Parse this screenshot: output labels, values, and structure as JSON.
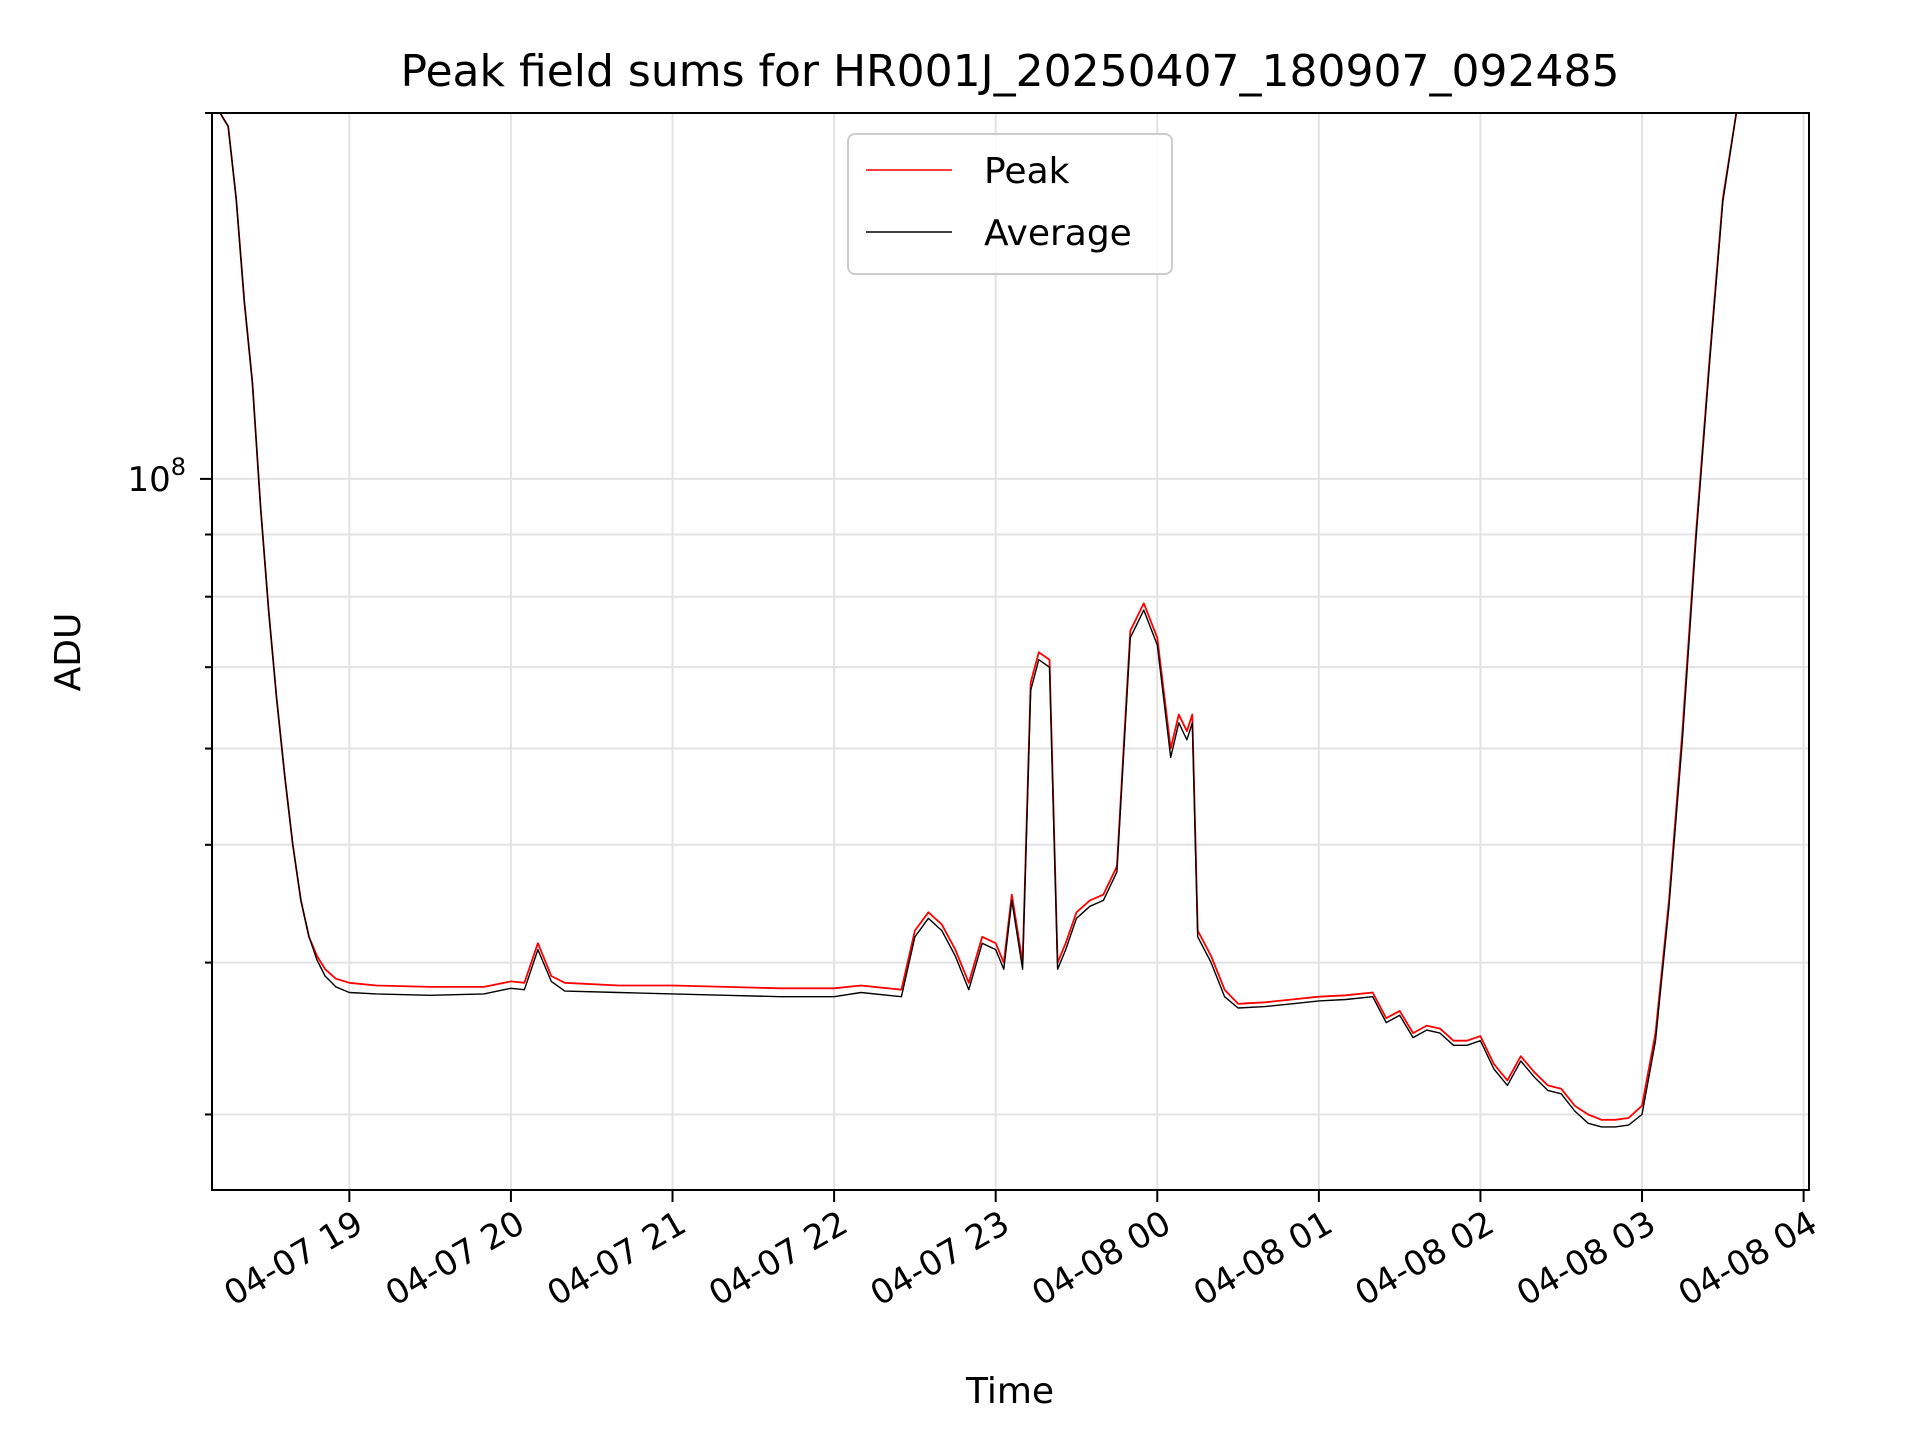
{
  "chart_data": {
    "type": "line",
    "title": "Peak field sums for HR001J_20250407_180907_092485",
    "xlabel": "Time",
    "ylabel": "ADU",
    "yscale": "log",
    "ylim": [
      26000000,
      200000000
    ],
    "xlim": [
      "2025-04-07 18:09",
      "2025-04-08 04:02"
    ],
    "grid": true,
    "legend_position": "top-center",
    "x_ticks": [
      "04-07 19",
      "04-07 20",
      "04-07 21",
      "04-07 22",
      "04-07 23",
      "04-08 00",
      "04-08 01",
      "04-08 02",
      "04-08 03",
      "04-08 04"
    ],
    "y_tick_major_label": "10^8",
    "y_tick_major_value": 100000000,
    "y_tick_minor_values": [
      30000000,
      40000000,
      50000000,
      60000000,
      70000000,
      80000000,
      90000000,
      200000000
    ],
    "x": [
      "2025-04-07 18:09",
      "2025-04-07 18:12",
      "2025-04-07 18:15",
      "2025-04-07 18:18",
      "2025-04-07 18:21",
      "2025-04-07 18:24",
      "2025-04-07 18:27",
      "2025-04-07 18:30",
      "2025-04-07 18:33",
      "2025-04-07 18:36",
      "2025-04-07 18:39",
      "2025-04-07 18:42",
      "2025-04-07 18:45",
      "2025-04-07 18:48",
      "2025-04-07 18:51",
      "2025-04-07 18:55",
      "2025-04-07 19:00",
      "2025-04-07 19:10",
      "2025-04-07 19:30",
      "2025-04-07 19:50",
      "2025-04-07 19:55",
      "2025-04-07 20:00",
      "2025-04-07 20:05",
      "2025-04-07 20:10",
      "2025-04-07 20:15",
      "2025-04-07 20:20",
      "2025-04-07 20:40",
      "2025-04-07 21:00",
      "2025-04-07 21:20",
      "2025-04-07 21:40",
      "2025-04-07 22:00",
      "2025-04-07 22:10",
      "2025-04-07 22:20",
      "2025-04-07 22:25",
      "2025-04-07 22:30",
      "2025-04-07 22:35",
      "2025-04-07 22:40",
      "2025-04-07 22:45",
      "2025-04-07 22:50",
      "2025-04-07 22:55",
      "2025-04-07 23:00",
      "2025-04-07 23:03",
      "2025-04-07 23:06",
      "2025-04-07 23:10",
      "2025-04-07 23:13",
      "2025-04-07 23:16",
      "2025-04-07 23:20",
      "2025-04-07 23:23",
      "2025-04-07 23:26",
      "2025-04-07 23:30",
      "2025-04-07 23:35",
      "2025-04-07 23:40",
      "2025-04-07 23:45",
      "2025-04-07 23:50",
      "2025-04-07 23:55",
      "2025-04-08 00:00",
      "2025-04-08 00:05",
      "2025-04-08 00:08",
      "2025-04-08 00:11",
      "2025-04-08 00:13",
      "2025-04-08 00:15",
      "2025-04-08 00:20",
      "2025-04-08 00:25",
      "2025-04-08 00:30",
      "2025-04-08 00:40",
      "2025-04-08 00:50",
      "2025-04-08 01:00",
      "2025-04-08 01:10",
      "2025-04-08 01:20",
      "2025-04-08 01:25",
      "2025-04-08 01:30",
      "2025-04-08 01:35",
      "2025-04-08 01:40",
      "2025-04-08 01:45",
      "2025-04-08 01:50",
      "2025-04-08 01:55",
      "2025-04-08 02:00",
      "2025-04-08 02:05",
      "2025-04-08 02:10",
      "2025-04-08 02:15",
      "2025-04-08 02:20",
      "2025-04-08 02:25",
      "2025-04-08 02:30",
      "2025-04-08 02:35",
      "2025-04-08 02:40",
      "2025-04-08 02:45",
      "2025-04-08 02:50",
      "2025-04-08 02:55",
      "2025-04-08 03:00",
      "2025-04-08 03:05",
      "2025-04-08 03:10",
      "2025-04-08 03:15",
      "2025-04-08 03:20",
      "2025-04-08 03:25",
      "2025-04-08 03:30",
      "2025-04-08 03:35",
      "2025-04-08 03:40",
      "2025-04-08 03:45",
      "2025-04-08 03:50",
      "2025-04-08 03:55",
      "2025-04-08 04:00"
    ],
    "series": [
      {
        "name": "Peak",
        "color": "#ff0000",
        "values": [
          200000000,
          200000000,
          195000000,
          170000000,
          140000000,
          120000000,
          95000000,
          78000000,
          66000000,
          57000000,
          50000000,
          45000000,
          42000000,
          40500000,
          39500000,
          38800000,
          38500000,
          38300000,
          38200000,
          38200000,
          38400000,
          38600000,
          38500000,
          41500000,
          39000000,
          38500000,
          38300000,
          38300000,
          38200000,
          38100000,
          38100000,
          38300000,
          38100000,
          38000000,
          42500000,
          44000000,
          43000000,
          41000000,
          38500000,
          42000000,
          41500000,
          40000000,
          45500000,
          40000000,
          68000000,
          72000000,
          71000000,
          40000000,
          41500000,
          44000000,
          45000000,
          45500000,
          48000000,
          75000000,
          79000000,
          74000000,
          60000000,
          64000000,
          62000000,
          64000000,
          42500000,
          40500000,
          38000000,
          37000000,
          37100000,
          37300000,
          37500000,
          37600000,
          37800000,
          36000000,
          36500000,
          35000000,
          35500000,
          35300000,
          34500000,
          34500000,
          34800000,
          33000000,
          32000000,
          33500000,
          32500000,
          31700000,
          31500000,
          30500000,
          30000000,
          29700000,
          29700000,
          29800000,
          30500000,
          35000000,
          45000000,
          62000000,
          90000000,
          125000000,
          170000000,
          200000000,
          200000000,
          200000000,
          200000000,
          200000000,
          200000000
        ]
      },
      {
        "name": "Average",
        "color": "#000000",
        "values": [
          200000000,
          200000000,
          195000000,
          170000000,
          140000000,
          120000000,
          95000000,
          78000000,
          66000000,
          57000000,
          50000000,
          45000000,
          42000000,
          40200000,
          39000000,
          38200000,
          37800000,
          37700000,
          37600000,
          37700000,
          37900000,
          38100000,
          38000000,
          41000000,
          38600000,
          37900000,
          37800000,
          37700000,
          37600000,
          37500000,
          37500000,
          37800000,
          37600000,
          37500000,
          42000000,
          43500000,
          42500000,
          40500000,
          38000000,
          41500000,
          41000000,
          39500000,
          45000000,
          39500000,
          67000000,
          71000000,
          70000000,
          39500000,
          41000000,
          43500000,
          44500000,
          45000000,
          47500000,
          74000000,
          78000000,
          73000000,
          59000000,
          63000000,
          61000000,
          63000000,
          42000000,
          40000000,
          37500000,
          36700000,
          36800000,
          37000000,
          37200000,
          37300000,
          37500000,
          35700000,
          36200000,
          34700000,
          35200000,
          35000000,
          34200000,
          34200000,
          34500000,
          32700000,
          31700000,
          33200000,
          32200000,
          31400000,
          31200000,
          30200000,
          29500000,
          29300000,
          29300000,
          29400000,
          30000000,
          34500000,
          44500000,
          61000000,
          89000000,
          124000000,
          169000000,
          200000000,
          200000000,
          200000000,
          200000000,
          200000000,
          200000000
        ]
      }
    ]
  }
}
